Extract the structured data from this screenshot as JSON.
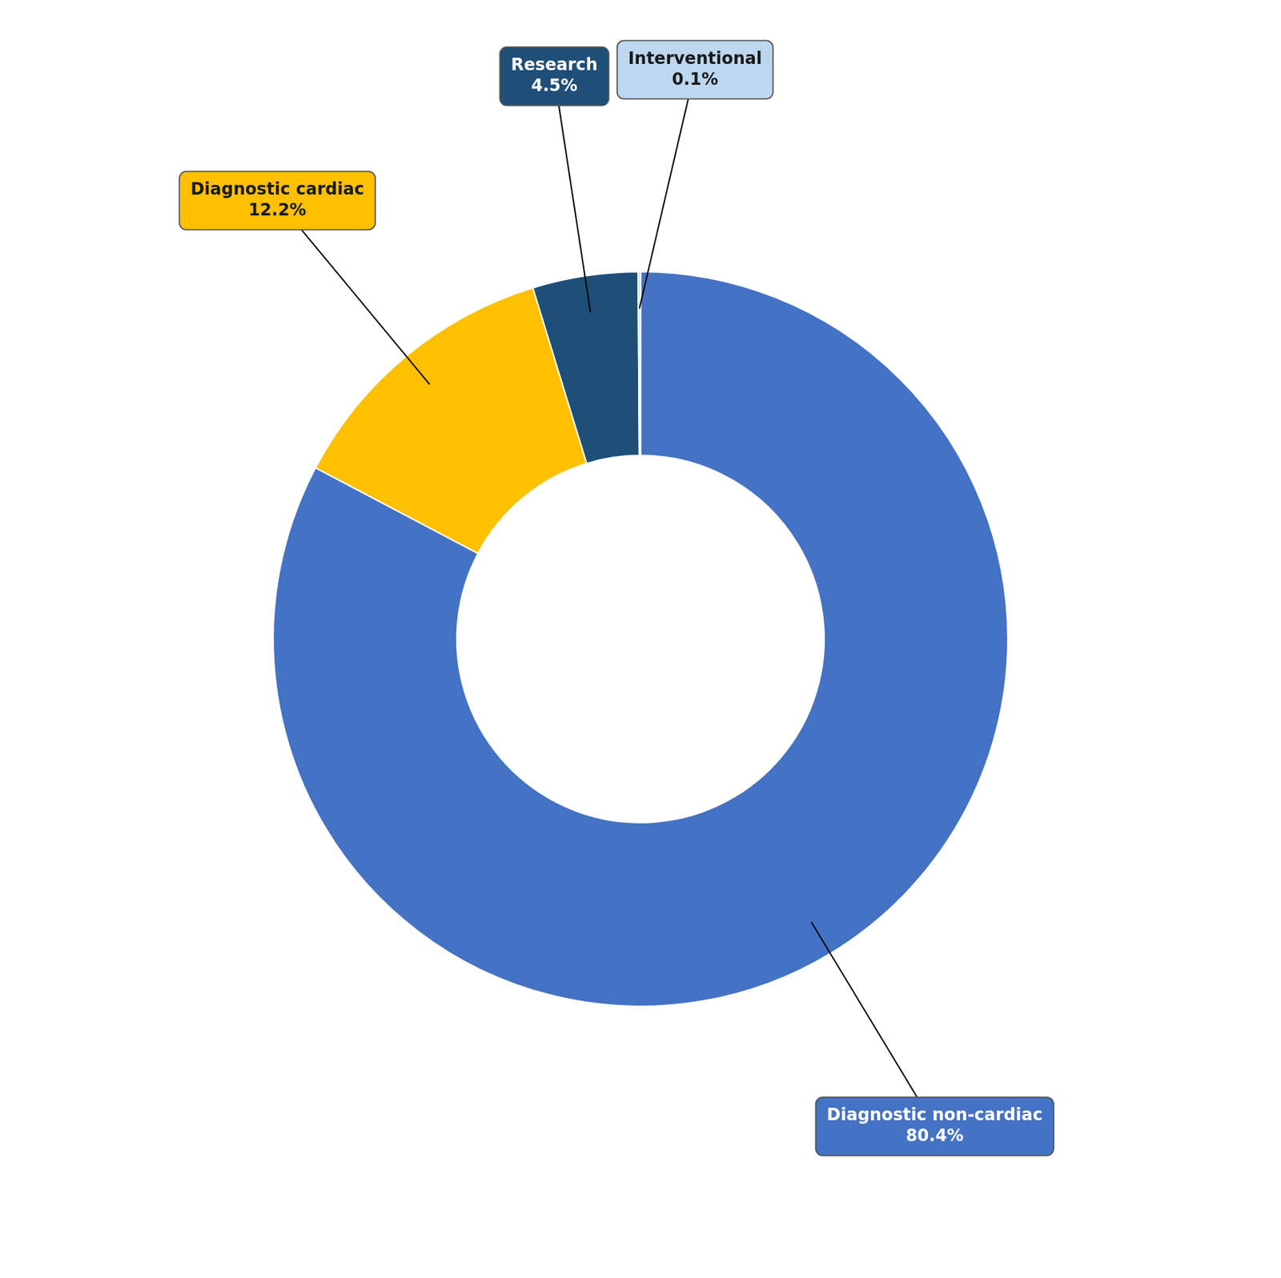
{
  "chart_data": {
    "type": "doughnut",
    "categories": [
      "Diagnostic non-cardiac",
      "Diagnostic cardiac",
      "Research",
      "Interventional"
    ],
    "values": [
      80.4,
      12.2,
      4.5,
      0.1
    ],
    "value_labels": [
      "80.4%",
      "12.2%",
      "4.5%",
      "0.1%"
    ],
    "colors": [
      "#4472C4",
      "#FFC000",
      "#1F4E79",
      "#BDD7EE"
    ],
    "data_labels": true
  }
}
